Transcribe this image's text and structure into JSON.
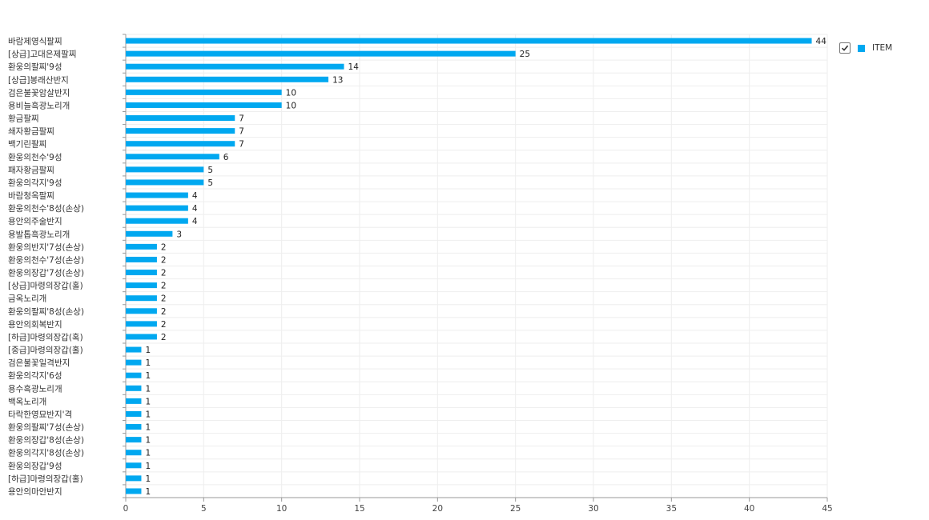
{
  "colors": {
    "bar": "#00A8F0",
    "grid": "#EEEEEE",
    "axis": "#999999"
  },
  "legend": {
    "label": "ITEM",
    "checked": true
  },
  "chart_data": {
    "type": "bar",
    "orientation": "horizontal",
    "title": "",
    "xlabel": "",
    "ylabel": "",
    "xlim": [
      0,
      45
    ],
    "x_ticks": [
      0,
      5,
      10,
      15,
      20,
      25,
      30,
      35,
      40,
      45
    ],
    "grid": true,
    "legend_position": "top-right",
    "categories": [
      "바람제영식팔찌",
      "[상급]고대은제팔찌",
      "환웅의팔찌'9성",
      "[상급]봉래산반지",
      "검은불꽃암살반지",
      "용비늘흑광노리개",
      "황금팔찌",
      "쇄자황금팔찌",
      "백기린팔찌",
      "환웅의천수'9성",
      "패자황금팔찌",
      "환웅의각지'9성",
      "바람청옥팔찌",
      "환웅의천수'8성(손상)",
      "용안의주술반지",
      "용발톱흑광노리개",
      "환웅의반지'7성(손상)",
      "환웅의천수'7성(손상)",
      "환웅의장갑'7성(손상)",
      "[상급]마령의장갑(홀)",
      "금옥노리개",
      "환웅의팔찌'8성(손상)",
      "용안의회복반지",
      "[하급]마령의장갑(혹)",
      "[중급]마령의장갑(홀)",
      "검은불꽃일격반지",
      "환웅의각지'6성",
      "용수흑광노리개",
      "백옥노리개",
      "타락한영묘반지'격",
      "환웅의팔찌'7성(손상)",
      "환웅의장갑'8성(손상)",
      "환웅의각지'8성(손상)",
      "환웅의장갑'9성",
      "[하급]마령의장갑(홀)",
      "용안의마안반지"
    ],
    "series": [
      {
        "name": "ITEM",
        "values": [
          44,
          25,
          14,
          13,
          10,
          10,
          7,
          7,
          7,
          6,
          5,
          5,
          4,
          4,
          4,
          3,
          2,
          2,
          2,
          2,
          2,
          2,
          2,
          2,
          1,
          1,
          1,
          1,
          1,
          1,
          1,
          1,
          1,
          1,
          1,
          1
        ]
      }
    ]
  }
}
